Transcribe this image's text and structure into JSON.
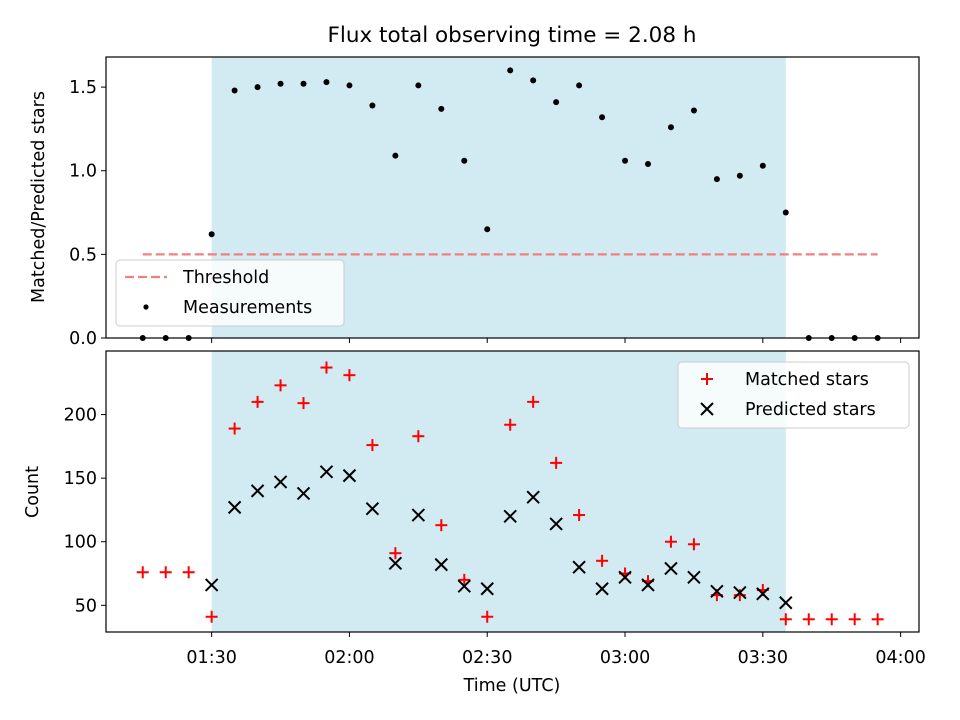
{
  "title": "Flux total observing time = 2.08 h",
  "colors": {
    "observing_window": "#add8e6",
    "threshold": "#f08080",
    "measurements": "#000000",
    "matched": "#ff0000",
    "predicted": "#000000"
  },
  "chart_data": [
    {
      "type": "scatter",
      "ylabel": "Matched/Predicted stars",
      "ylim": [
        0,
        1.68
      ],
      "yticks": [
        0.0,
        0.5,
        1.0,
        1.5
      ],
      "ytick_labels": [
        "0.0",
        "0.5",
        "1.0",
        "1.5"
      ],
      "x_range": [
        "01:07",
        "04:04"
      ],
      "shaded_interval": [
        "01:30",
        "03:35"
      ],
      "legend_position": "lower-left",
      "threshold": {
        "name": "Threshold",
        "value": 0.5,
        "x_start": "01:15",
        "x_end": "03:55"
      },
      "series": [
        {
          "name": "Measurements",
          "x": [
            "01:15",
            "01:20",
            "01:25",
            "01:30",
            "01:35",
            "01:40",
            "01:45",
            "01:50",
            "01:55",
            "02:00",
            "02:05",
            "02:10",
            "02:15",
            "02:20",
            "02:25",
            "02:30",
            "02:35",
            "02:40",
            "02:45",
            "02:50",
            "02:55",
            "03:00",
            "03:05",
            "03:10",
            "03:15",
            "03:20",
            "03:25",
            "03:30",
            "03:35",
            "03:40",
            "03:45",
            "03:50",
            "03:55"
          ],
          "y": [
            0.0,
            0.0,
            0.0,
            0.62,
            1.48,
            1.5,
            1.52,
            1.52,
            1.53,
            1.51,
            1.39,
            1.09,
            1.51,
            1.37,
            1.06,
            0.65,
            1.6,
            1.54,
            1.41,
            1.51,
            1.32,
            1.06,
            1.04,
            1.26,
            1.36,
            0.95,
            0.97,
            1.03,
            0.75,
            0.0,
            0.0,
            0.0,
            0.0
          ]
        }
      ]
    },
    {
      "type": "scatter",
      "xlabel": "Time (UTC)",
      "ylabel": "Count",
      "ylim": [
        29,
        250
      ],
      "yticks": [
        50,
        100,
        150,
        200
      ],
      "ytick_labels": [
        "50",
        "100",
        "150",
        "200"
      ],
      "xticks": [
        "01:30",
        "02:00",
        "02:30",
        "03:00",
        "03:30",
        "04:00"
      ],
      "x_range": [
        "01:07",
        "04:04"
      ],
      "shaded_interval": [
        "01:30",
        "03:35"
      ],
      "legend_position": "upper-right",
      "series": [
        {
          "name": "Matched stars",
          "marker": "+",
          "x": [
            "01:15",
            "01:20",
            "01:25",
            "01:30",
            "01:35",
            "01:40",
            "01:45",
            "01:50",
            "01:55",
            "02:00",
            "02:05",
            "02:10",
            "02:15",
            "02:20",
            "02:25",
            "02:30",
            "02:35",
            "02:40",
            "02:45",
            "02:50",
            "02:55",
            "03:00",
            "03:05",
            "03:10",
            "03:15",
            "03:20",
            "03:25",
            "03:30",
            "03:35",
            "03:40",
            "03:45",
            "03:50",
            "03:55"
          ],
          "y": [
            76,
            76,
            76,
            41,
            189,
            210,
            223,
            209,
            237,
            231,
            176,
            91,
            183,
            113,
            70,
            41,
            192,
            210,
            162,
            121,
            85,
            75,
            69,
            100,
            98,
            58,
            58,
            62,
            39,
            39,
            39,
            39,
            39
          ]
        },
        {
          "name": "Predicted stars",
          "marker": "x",
          "x": [
            "01:30",
            "01:35",
            "01:40",
            "01:45",
            "01:50",
            "01:55",
            "02:00",
            "02:05",
            "02:10",
            "02:15",
            "02:20",
            "02:25",
            "02:30",
            "02:35",
            "02:40",
            "02:45",
            "02:50",
            "02:55",
            "03:00",
            "03:05",
            "03:10",
            "03:15",
            "03:20",
            "03:25",
            "03:30",
            "03:35"
          ],
          "y": [
            66,
            127,
            140,
            147,
            138,
            155,
            152,
            126,
            83,
            121,
            82,
            65,
            63,
            120,
            135,
            114,
            80,
            63,
            72,
            66,
            79,
            72,
            61,
            60,
            59,
            52
          ]
        }
      ]
    }
  ]
}
